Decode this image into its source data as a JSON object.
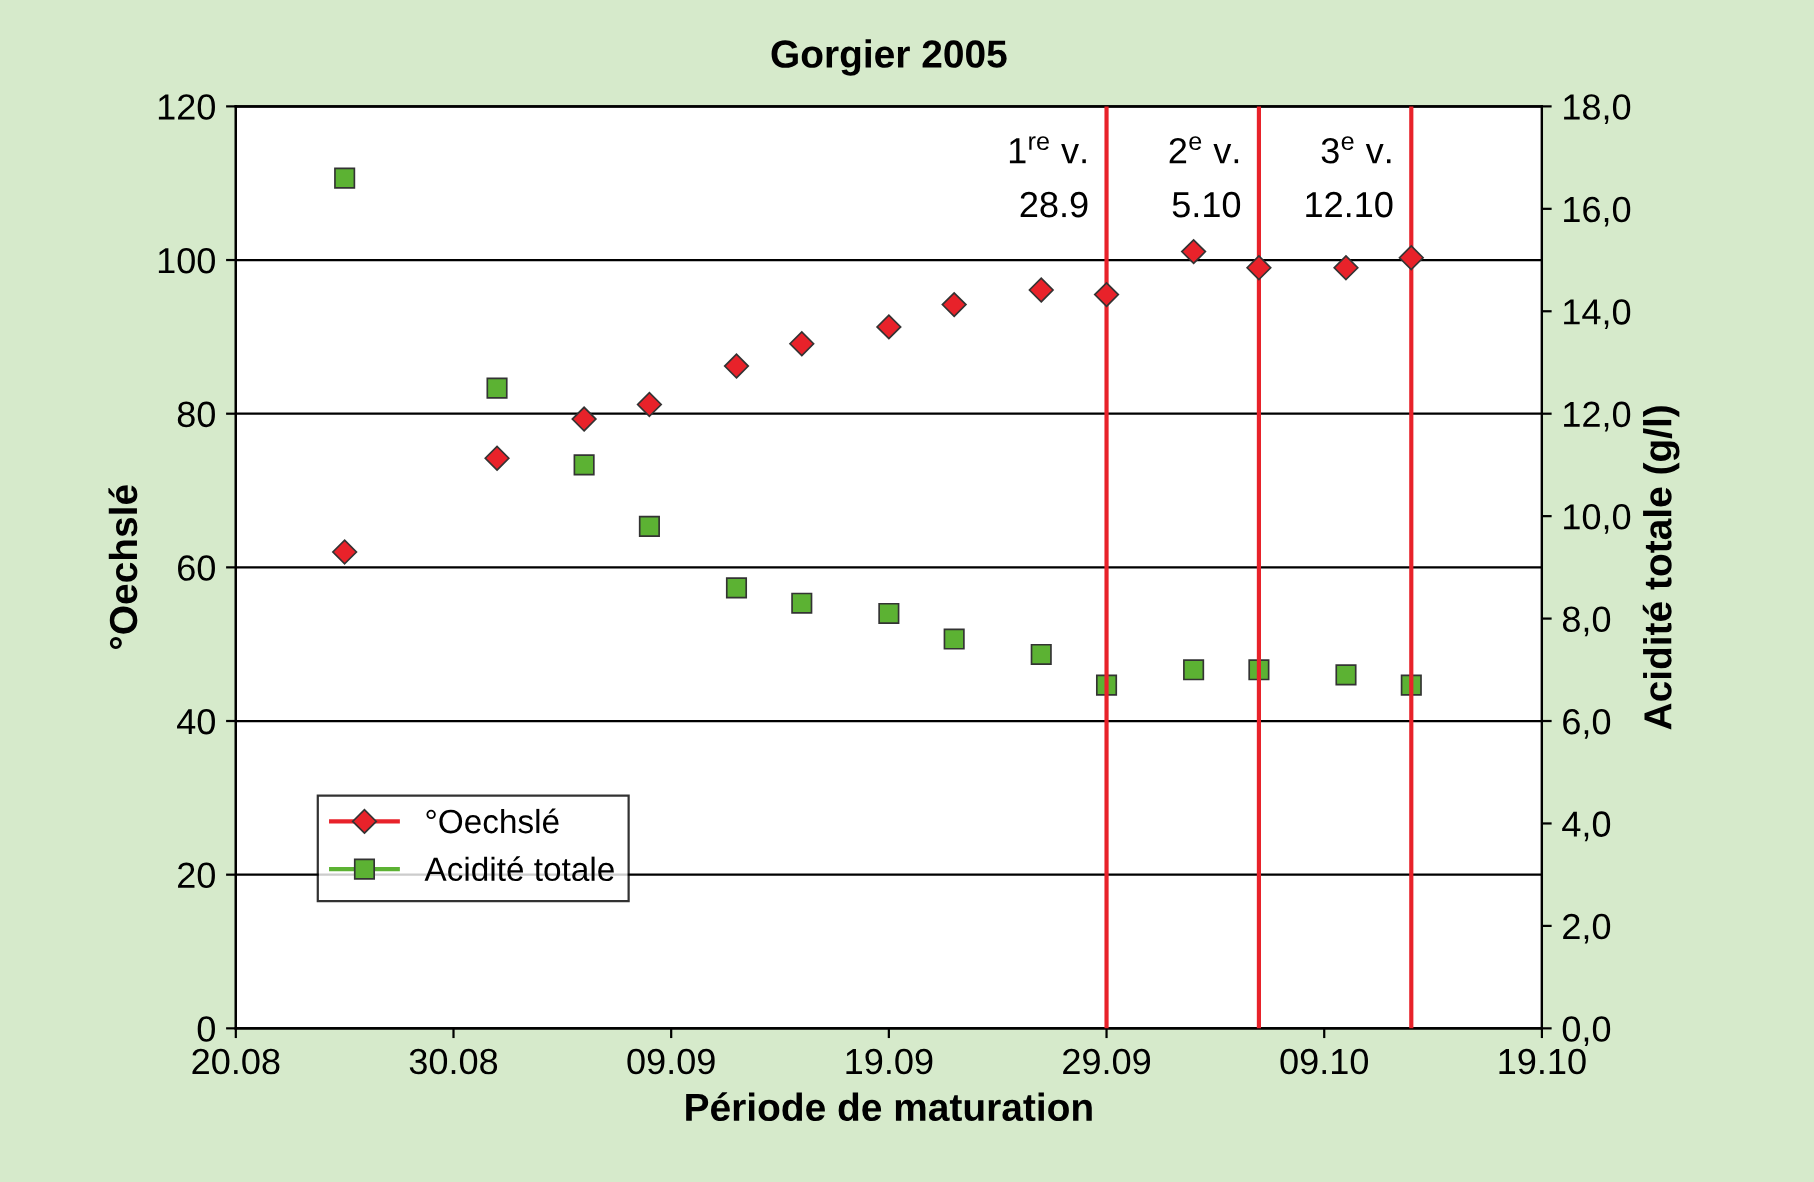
{
  "chart_data": {
    "type": "scatter",
    "title": "Gorgier 2005",
    "xlabel": "Période de maturation",
    "ylabel": "°Oechslé",
    "y2label": "Acidité totale (g/l)",
    "x": [
      "2005-08-25",
      "2005-09-01",
      "2005-09-05",
      "2005-09-08",
      "2005-09-12",
      "2005-09-15",
      "2005-09-19",
      "2005-09-22",
      "2005-09-26",
      "2005-09-29",
      "2005-10-03",
      "2005-10-06",
      "2005-10-10",
      "2005-10-13"
    ],
    "series": [
      {
        "name": "°Oechslé",
        "color": "#e8222a",
        "marker": "diamond",
        "values": [
          62.0,
          74.2,
          79.3,
          81.2,
          86.2,
          89.1,
          91.3,
          94.2,
          96.1,
          95.5,
          101.1,
          99.0,
          99.0,
          100.3
        ]
      },
      {
        "name": "Acidité totale",
        "color": "#5cb233",
        "marker": "square",
        "axis": "y2",
        "values": [
          16.6,
          12.5,
          11.0,
          9.8,
          8.6,
          8.3,
          8.1,
          7.6,
          7.3,
          6.7,
          7.0,
          7.0,
          6.9,
          6.7
        ]
      }
    ],
    "xlim": [
      "2005-08-20",
      "2005-10-19"
    ],
    "xticks": [
      {
        "value": "2005-08-20",
        "label": "20.08"
      },
      {
        "value": "2005-08-30",
        "label": "30.08"
      },
      {
        "value": "2005-09-09",
        "label": "09.09"
      },
      {
        "value": "2005-09-19",
        "label": "19.09"
      },
      {
        "value": "2005-09-29",
        "label": "29.09"
      },
      {
        "value": "2005-10-09",
        "label": "09.10"
      },
      {
        "value": "2005-10-19",
        "label": "19.10"
      }
    ],
    "ylim": [
      0,
      120
    ],
    "yticks": [
      0,
      20,
      40,
      60,
      80,
      100,
      120
    ],
    "y2lim": [
      0,
      18
    ],
    "y2ticks": [
      {
        "value": 0,
        "label": "0,0"
      },
      {
        "value": 2,
        "label": "2,0"
      },
      {
        "value": 4,
        "label": "4,0"
      },
      {
        "value": 6,
        "label": "6,0"
      },
      {
        "value": 8,
        "label": "8,0"
      },
      {
        "value": 10,
        "label": "10,0"
      },
      {
        "value": 12,
        "label": "12,0"
      },
      {
        "value": 14,
        "label": "14,0"
      },
      {
        "value": 16,
        "label": "16,0"
      },
      {
        "value": 18,
        "label": "18,0"
      }
    ],
    "ref_lines": [
      {
        "axis": "x",
        "value": "2005-09-29",
        "label": "1$^{re}$ v.\n28.9",
        "color": "#e8222a"
      },
      {
        "axis": "x",
        "value": "2005-10-06",
        "label": "2$^{e}$ v.\n5.10",
        "color": "#e8222a"
      },
      {
        "axis": "x",
        "value": "2005-10-13",
        "label": "3$^{e}$ v.\n12.10",
        "color": "#e8222a"
      }
    ],
    "grid": "y",
    "legend": "bottom left"
  }
}
